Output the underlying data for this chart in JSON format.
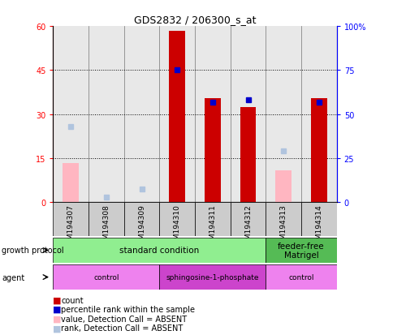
{
  "title": "GDS2832 / 206300_s_at",
  "samples": [
    "GSM194307",
    "GSM194308",
    "GSM194309",
    "GSM194310",
    "GSM194311",
    "GSM194312",
    "GSM194313",
    "GSM194314"
  ],
  "count_values": [
    null,
    null,
    null,
    58.5,
    35.5,
    32.5,
    null,
    35.5
  ],
  "count_absent": [
    13.5,
    null,
    null,
    null,
    null,
    null,
    11.0,
    null
  ],
  "rank_values": [
    null,
    null,
    null,
    75.0,
    57.0,
    58.0,
    null,
    57.0
  ],
  "rank_absent": [
    43.0,
    3.0,
    7.5,
    null,
    null,
    null,
    29.0,
    null
  ],
  "ylim_left": [
    0,
    60
  ],
  "ylim_right": [
    0,
    100
  ],
  "yticks_left": [
    0,
    15,
    30,
    45,
    60
  ],
  "yticks_right": [
    0,
    25,
    50,
    75,
    100
  ],
  "ytick_labels_left": [
    "0",
    "15",
    "30",
    "45",
    "60"
  ],
  "ytick_labels_right": [
    "0",
    "25",
    "50",
    "75",
    "100%"
  ],
  "growth_protocol_groups": [
    {
      "label": "standard condition",
      "start": 0,
      "end": 6
    },
    {
      "label": "feeder-free\nMatrigel",
      "start": 6,
      "end": 8
    }
  ],
  "agent_groups": [
    {
      "label": "control",
      "start": 0,
      "end": 3,
      "color": "#ee82ee"
    },
    {
      "label": "sphingosine-1-phosphate",
      "start": 3,
      "end": 6,
      "color": "#cc44cc"
    },
    {
      "label": "control",
      "start": 6,
      "end": 8,
      "color": "#ee82ee"
    }
  ],
  "growth_protocol_colors": [
    "#90ee90",
    "#55bb55"
  ],
  "count_color": "#cc0000",
  "rank_color": "#0000cc",
  "count_absent_color": "#ffb6c1",
  "rank_absent_color": "#b0c4de",
  "legend_items": [
    {
      "color": "#cc0000",
      "label": "count"
    },
    {
      "color": "#0000cc",
      "label": "percentile rank within the sample"
    },
    {
      "color": "#ffb6c1",
      "label": "value, Detection Call = ABSENT"
    },
    {
      "color": "#b0c4de",
      "label": "rank, Detection Call = ABSENT"
    }
  ]
}
